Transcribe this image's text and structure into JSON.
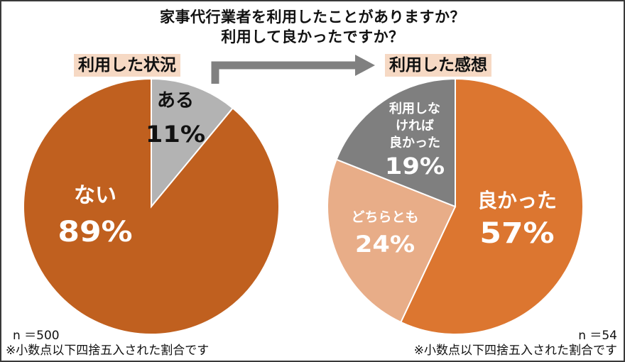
{
  "title": {
    "line1": "家事代行業者を利用したことがありますか？",
    "line2": "利用して良かったですか？"
  },
  "left": {
    "heading": "利用した状況",
    "n_label": "n ＝500",
    "footnote": "※小数点以下四捨五入された割合です"
  },
  "right": {
    "heading": "利用した感想",
    "n_label": "n ＝54",
    "footnote": "※小数点以下四捨五入された割合です"
  },
  "colors": {
    "usage_yes": "#b3b3b3",
    "usage_no": "#c0601f",
    "good": "#dc7630",
    "neutral": "#e8ad88",
    "bad": "#7f7f7f",
    "arrow": "#808080",
    "label_bg": "#f6d9c4",
    "text_on_pie": "#ffffff",
    "text_dark": "#111111"
  },
  "chart_data": [
    {
      "type": "pie",
      "title": "利用した状況",
      "slices": [
        {
          "label": "ある",
          "value": 11,
          "value_label": "11%",
          "color": "#b3b3b3"
        },
        {
          "label": "ない",
          "value": 89,
          "value_label": "89%",
          "color": "#c0601f"
        }
      ]
    },
    {
      "type": "pie",
      "title": "利用した感想",
      "slices": [
        {
          "label": "良かった",
          "value": 57,
          "value_label": "57%",
          "color": "#dc7630"
        },
        {
          "label": "どちらとも",
          "value": 24,
          "value_label": "24%",
          "color": "#e8ad88"
        },
        {
          "label": "利用しなければ良かった",
          "value": 19,
          "value_label": "19%",
          "color": "#7f7f7f"
        }
      ]
    }
  ]
}
